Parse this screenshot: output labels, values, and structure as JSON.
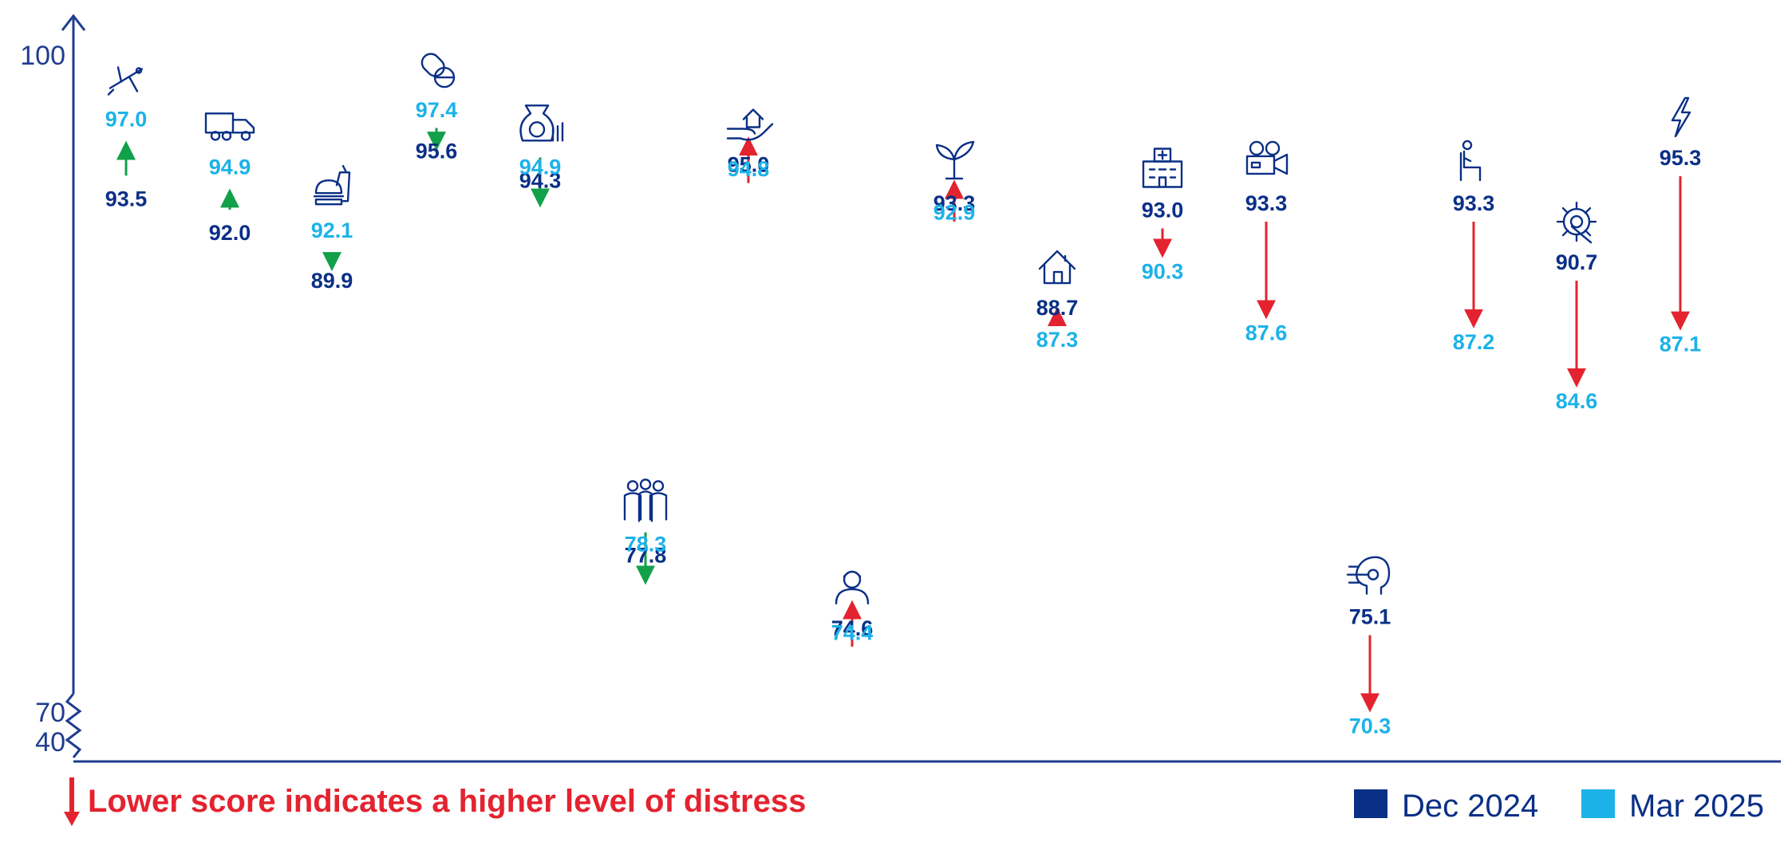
{
  "colors": {
    "dec": "#0A2F86",
    "mar": "#1CB2E8",
    "up": "#12A04A",
    "down": "#E3232F",
    "axis": "#1F3C8F",
    "note": "#E3232F"
  },
  "footer": {
    "note": "Lower score indicates a higher level of distress"
  },
  "chart_data": {
    "type": "dot-arrow",
    "series": [
      {
        "name": "Dec 2024",
        "values": [
          93.5,
          92.0,
          89.9,
          95.6,
          94.3,
          77.8,
          95.0,
          74.6,
          93.3,
          88.7,
          93.0,
          93.3,
          75.1,
          93.3,
          90.7,
          95.3
        ]
      },
      {
        "name": "Mar 2025",
        "values": [
          97.0,
          94.9,
          92.1,
          97.4,
          94.9,
          78.3,
          94.8,
          74.4,
          92.9,
          87.3,
          90.3,
          87.6,
          70.3,
          87.2,
          84.6,
          87.1
        ]
      }
    ],
    "icons": [
      "airplane-icon",
      "truck-icon",
      "food-drink-icon",
      "pill-icon",
      "money-bag-icon",
      "people-group-icon",
      "hand-house-icon",
      "person-icon",
      "plant-icon",
      "house-icon",
      "hospital-icon",
      "film-camera-icon",
      "ai-head-icon",
      "seated-person-icon",
      "gear-wrench-icon",
      "lightning-icon"
    ],
    "y_ticks": [
      "100",
      "70",
      "40"
    ],
    "y_axis_break": true,
    "legend": "bottom-right"
  }
}
